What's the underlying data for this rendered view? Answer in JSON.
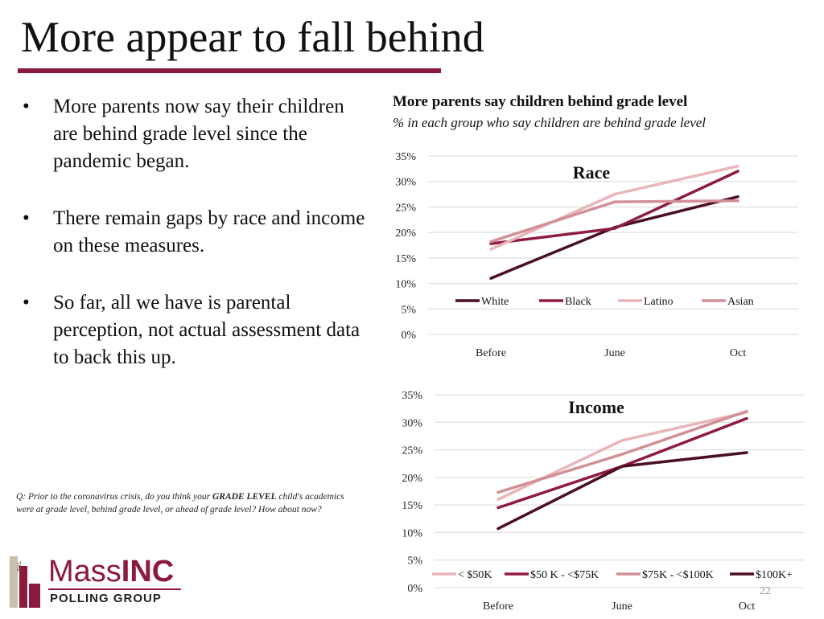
{
  "slide": {
    "title": "More appear to fall behind",
    "bullet_marker": "•",
    "bullets": [
      "More parents now say their children are behind grade level since the pandemic began.",
      "There remain gaps by race and income on these measures.",
      "So far, all we have is parental perception, not actual assessment data to back this up."
    ],
    "question_html": "Q: Prior to the coronavirus crisis, do you think your <b>GRADE LEVEL</b> child's academics were at grade level, behind grade level, or ahead of grade level? How about now?",
    "page_number": "22"
  },
  "logo": {
    "vertical_text": "THE",
    "main_light": "Mass",
    "main_bold": "INC",
    "sub": "POLLING GROUP"
  },
  "chart_header": {
    "title": "More parents say children behind grade level",
    "subtitle": "% in each group who say children are behind grade level"
  },
  "colors": {
    "accent": "#8b1a3c",
    "grid": "#d9d9d9"
  },
  "chart_data": [
    {
      "type": "line",
      "title": "Race",
      "categories": [
        "Before",
        "June",
        "Oct"
      ],
      "ylim": [
        0,
        35
      ],
      "yticks": [
        "0%",
        "5%",
        "10%",
        "15%",
        "20%",
        "25%",
        "30%",
        "35%"
      ],
      "grid": true,
      "legend": "inside-bottom",
      "series": [
        {
          "name": "White",
          "color": "#4a0f22",
          "values": [
            11.0,
            21.0,
            27.0
          ]
        },
        {
          "name": "Black",
          "color": "#8e1b42",
          "values": [
            17.8,
            20.8,
            32.0
          ]
        },
        {
          "name": "Latino",
          "color": "#e8b5b9",
          "values": [
            16.7,
            27.5,
            33.0
          ]
        },
        {
          "name": "Asian",
          "color": "#d28f95",
          "values": [
            18.2,
            26.0,
            26.2
          ]
        }
      ]
    },
    {
      "type": "line",
      "title": "Income",
      "categories": [
        "Before",
        "June",
        "Oct"
      ],
      "ylim": [
        0,
        35
      ],
      "yticks": [
        "0%",
        "5%",
        "10%",
        "15%",
        "20%",
        "25%",
        "30%",
        "35%"
      ],
      "grid": true,
      "legend": "bottom",
      "series": [
        {
          "name": "< $50K",
          "color": "#e8b5b9",
          "values": [
            16.0,
            26.7,
            31.8
          ]
        },
        {
          "name": "$50 K - <$75K",
          "color": "#8e1b42",
          "values": [
            14.5,
            22.0,
            30.7
          ]
        },
        {
          "name": "$75K - <$100K",
          "color": "#d28f95",
          "values": [
            17.3,
            24.2,
            32.0
          ]
        },
        {
          "name": "$100K+",
          "color": "#4a0f22",
          "values": [
            10.7,
            22.0,
            24.5
          ]
        }
      ]
    }
  ]
}
